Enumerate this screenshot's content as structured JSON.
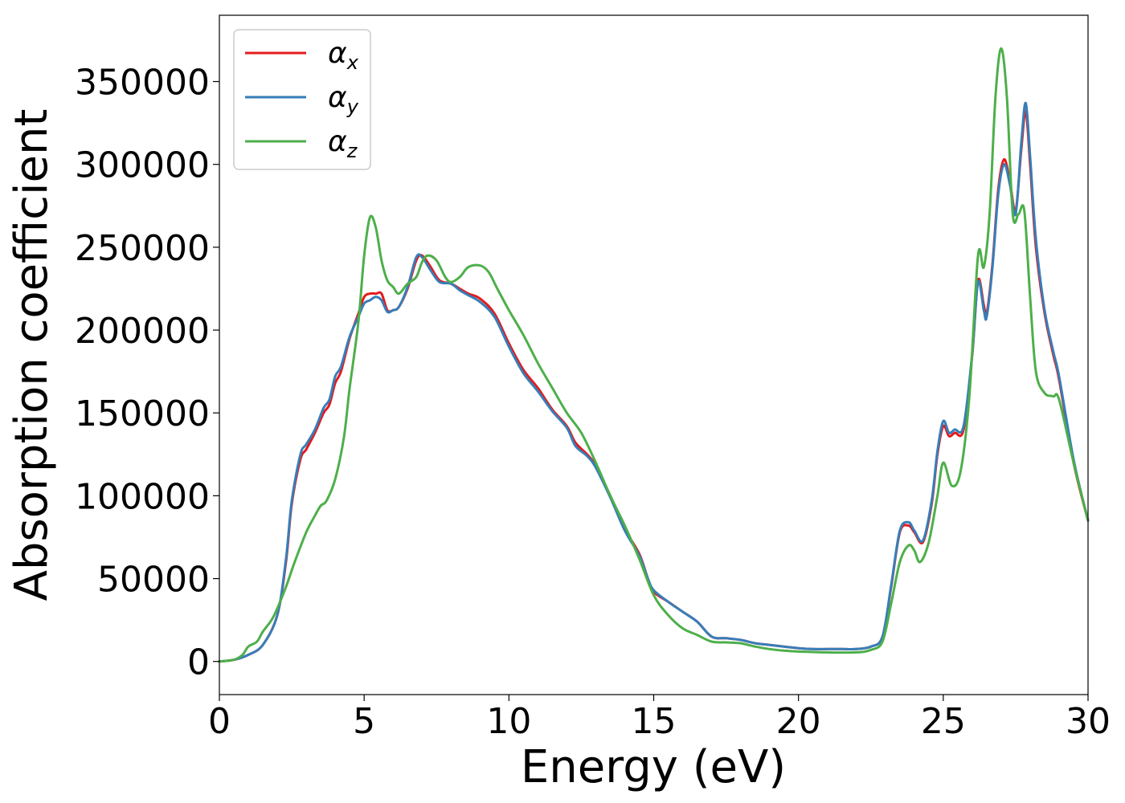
{
  "chart_data": {
    "type": "line",
    "title": "",
    "xlabel": "Energy (eV)",
    "ylabel": "Absorption coefficient",
    "xlim": [
      0,
      30
    ],
    "ylim": [
      -20000,
      390000
    ],
    "xticks": [
      0,
      5,
      10,
      15,
      20,
      25,
      30
    ],
    "yticks": [
      0,
      50000,
      100000,
      150000,
      200000,
      250000,
      300000,
      350000
    ],
    "grid": false,
    "legend": {
      "placement": "top-left"
    },
    "series": [
      {
        "name": "α_x",
        "symbol": "α",
        "subscript": "x",
        "color": "#e41a1c",
        "points": [
          [
            0,
            0
          ],
          [
            0.5,
            1000
          ],
          [
            1,
            4000
          ],
          [
            1.5,
            10000
          ],
          [
            2,
            28000
          ],
          [
            2.3,
            60000
          ],
          [
            2.5,
            95000
          ],
          [
            2.8,
            122000
          ],
          [
            3,
            128000
          ],
          [
            3.3,
            138000
          ],
          [
            3.6,
            150000
          ],
          [
            3.8,
            155000
          ],
          [
            4,
            168000
          ],
          [
            4.2,
            175000
          ],
          [
            4.5,
            195000
          ],
          [
            4.8,
            210000
          ],
          [
            5,
            220000
          ],
          [
            5.2,
            222000
          ],
          [
            5.4,
            222000
          ],
          [
            5.6,
            222000
          ],
          [
            5.8,
            212000
          ],
          [
            6,
            212000
          ],
          [
            6.2,
            214000
          ],
          [
            6.5,
            225000
          ],
          [
            6.8,
            242000
          ],
          [
            7,
            245000
          ],
          [
            7.3,
            238000
          ],
          [
            7.6,
            230000
          ],
          [
            8,
            228000
          ],
          [
            8.3,
            225000
          ],
          [
            8.6,
            222000
          ],
          [
            9,
            219000
          ],
          [
            9.5,
            210000
          ],
          [
            10,
            192000
          ],
          [
            10.5,
            176000
          ],
          [
            11,
            165000
          ],
          [
            11.5,
            152000
          ],
          [
            12,
            142000
          ],
          [
            12.3,
            132000
          ],
          [
            12.7,
            125000
          ],
          [
            13,
            118000
          ],
          [
            13.5,
            100000
          ],
          [
            14,
            80000
          ],
          [
            14.5,
            65000
          ],
          [
            14.8,
            50000
          ],
          [
            15,
            42000
          ],
          [
            15.5,
            36000
          ],
          [
            16,
            30000
          ],
          [
            16.5,
            24000
          ],
          [
            17,
            15000
          ],
          [
            17.5,
            14000
          ],
          [
            18,
            13000
          ],
          [
            18.5,
            11000
          ],
          [
            19,
            10000
          ],
          [
            19.5,
            9000
          ],
          [
            20,
            8000
          ],
          [
            20.5,
            7500
          ],
          [
            21,
            7500
          ],
          [
            21.5,
            7500
          ],
          [
            22,
            7500
          ],
          [
            22.5,
            9000
          ],
          [
            22.9,
            15000
          ],
          [
            23.2,
            45000
          ],
          [
            23.5,
            78000
          ],
          [
            23.8,
            82000
          ],
          [
            24,
            78000
          ],
          [
            24.3,
            72000
          ],
          [
            24.6,
            95000
          ],
          [
            24.8,
            125000
          ],
          [
            25,
            142000
          ],
          [
            25.2,
            136000
          ],
          [
            25.4,
            138000
          ],
          [
            25.7,
            140000
          ],
          [
            26,
            185000
          ],
          [
            26.2,
            230000
          ],
          [
            26.4,
            215000
          ],
          [
            26.5,
            210000
          ],
          [
            26.7,
            240000
          ],
          [
            26.9,
            285000
          ],
          [
            27.1,
            303000
          ],
          [
            27.3,
            290000
          ],
          [
            27.5,
            272000
          ],
          [
            27.7,
            310000
          ],
          [
            27.85,
            332000
          ],
          [
            28,
            300000
          ],
          [
            28.2,
            250000
          ],
          [
            28.5,
            210000
          ],
          [
            28.8,
            185000
          ],
          [
            29,
            170000
          ],
          [
            29.5,
            120000
          ],
          [
            30,
            85000
          ]
        ]
      },
      {
        "name": "α_y",
        "symbol": "α",
        "subscript": "y",
        "color": "#377eb8",
        "points": [
          [
            0,
            0
          ],
          [
            0.5,
            1000
          ],
          [
            1,
            4000
          ],
          [
            1.5,
            10000
          ],
          [
            2,
            28000
          ],
          [
            2.3,
            62000
          ],
          [
            2.5,
            97000
          ],
          [
            2.8,
            125000
          ],
          [
            3,
            131000
          ],
          [
            3.3,
            140000
          ],
          [
            3.6,
            153000
          ],
          [
            3.8,
            158000
          ],
          [
            4,
            172000
          ],
          [
            4.2,
            178000
          ],
          [
            4.5,
            196000
          ],
          [
            4.8,
            208000
          ],
          [
            5,
            216000
          ],
          [
            5.2,
            218000
          ],
          [
            5.4,
            220000
          ],
          [
            5.6,
            218000
          ],
          [
            5.8,
            211000
          ],
          [
            6,
            212000
          ],
          [
            6.2,
            214000
          ],
          [
            6.5,
            226000
          ],
          [
            6.8,
            244000
          ],
          [
            7,
            244000
          ],
          [
            7.3,
            236000
          ],
          [
            7.6,
            229000
          ],
          [
            8,
            228000
          ],
          [
            8.3,
            224000
          ],
          [
            8.6,
            221000
          ],
          [
            9,
            217000
          ],
          [
            9.5,
            208000
          ],
          [
            10,
            190000
          ],
          [
            10.5,
            174000
          ],
          [
            11,
            163000
          ],
          [
            11.5,
            151000
          ],
          [
            12,
            141000
          ],
          [
            12.3,
            130000
          ],
          [
            12.7,
            124000
          ],
          [
            13,
            117000
          ],
          [
            13.5,
            99000
          ],
          [
            14,
            79000
          ],
          [
            14.5,
            64000
          ],
          [
            14.8,
            50000
          ],
          [
            15,
            43000
          ],
          [
            15.5,
            36000
          ],
          [
            16,
            30000
          ],
          [
            16.5,
            24000
          ],
          [
            17,
            15000
          ],
          [
            17.5,
            14000
          ],
          [
            18,
            13000
          ],
          [
            18.5,
            11000
          ],
          [
            19,
            10000
          ],
          [
            19.5,
            9000
          ],
          [
            20,
            8000
          ],
          [
            20.5,
            7500
          ],
          [
            21,
            7500
          ],
          [
            21.5,
            7500
          ],
          [
            22,
            7500
          ],
          [
            22.5,
            9000
          ],
          [
            22.9,
            15000
          ],
          [
            23.2,
            46000
          ],
          [
            23.5,
            79000
          ],
          [
            23.8,
            84000
          ],
          [
            24,
            79000
          ],
          [
            24.3,
            73000
          ],
          [
            24.6,
            97000
          ],
          [
            24.8,
            127000
          ],
          [
            25,
            145000
          ],
          [
            25.2,
            138000
          ],
          [
            25.4,
            140000
          ],
          [
            25.7,
            142000
          ],
          [
            26,
            186000
          ],
          [
            26.2,
            229000
          ],
          [
            26.4,
            212000
          ],
          [
            26.5,
            208000
          ],
          [
            26.7,
            238000
          ],
          [
            26.9,
            282000
          ],
          [
            27.1,
            300000
          ],
          [
            27.3,
            288000
          ],
          [
            27.5,
            270000
          ],
          [
            27.7,
            314000
          ],
          [
            27.85,
            337000
          ],
          [
            28,
            305000
          ],
          [
            28.2,
            255000
          ],
          [
            28.5,
            212000
          ],
          [
            28.8,
            187000
          ],
          [
            29,
            172000
          ],
          [
            29.5,
            122000
          ],
          [
            30,
            85000
          ]
        ]
      },
      {
        "name": "α_z",
        "symbol": "α",
        "subscript": "z",
        "color": "#4daf4a",
        "points": [
          [
            0,
            0
          ],
          [
            0.5,
            1000
          ],
          [
            0.8,
            4000
          ],
          [
            1,
            9000
          ],
          [
            1.3,
            12000
          ],
          [
            1.5,
            18000
          ],
          [
            1.8,
            25000
          ],
          [
            2,
            32000
          ],
          [
            2.3,
            45000
          ],
          [
            2.6,
            60000
          ],
          [
            3,
            78000
          ],
          [
            3.3,
            88000
          ],
          [
            3.5,
            94000
          ],
          [
            3.7,
            97000
          ],
          [
            4,
            110000
          ],
          [
            4.3,
            135000
          ],
          [
            4.5,
            165000
          ],
          [
            4.8,
            205000
          ],
          [
            5,
            245000
          ],
          [
            5.2,
            268000
          ],
          [
            5.4,
            262000
          ],
          [
            5.6,
            242000
          ],
          [
            5.8,
            230000
          ],
          [
            6,
            226000
          ],
          [
            6.2,
            222000
          ],
          [
            6.5,
            228000
          ],
          [
            6.8,
            232000
          ],
          [
            7,
            241000
          ],
          [
            7.2,
            245000
          ],
          [
            7.5,
            242000
          ],
          [
            7.8,
            232000
          ],
          [
            8,
            229000
          ],
          [
            8.3,
            232000
          ],
          [
            8.6,
            238000
          ],
          [
            9,
            239000
          ],
          [
            9.3,
            235000
          ],
          [
            9.6,
            225000
          ],
          [
            10,
            212000
          ],
          [
            10.5,
            197000
          ],
          [
            11,
            180000
          ],
          [
            11.5,
            165000
          ],
          [
            12,
            150000
          ],
          [
            12.5,
            138000
          ],
          [
            13,
            120000
          ],
          [
            13.5,
            100000
          ],
          [
            14,
            82000
          ],
          [
            14.5,
            62000
          ],
          [
            15,
            40000
          ],
          [
            15.5,
            28000
          ],
          [
            16,
            20000
          ],
          [
            16.5,
            16000
          ],
          [
            17,
            12000
          ],
          [
            17.5,
            11500
          ],
          [
            18,
            11000
          ],
          [
            18.5,
            9000
          ],
          [
            19,
            7500
          ],
          [
            19.5,
            6500
          ],
          [
            20,
            6000
          ],
          [
            21,
            5500
          ],
          [
            22,
            5500
          ],
          [
            22.5,
            7000
          ],
          [
            22.9,
            12000
          ],
          [
            23.2,
            35000
          ],
          [
            23.5,
            60000
          ],
          [
            23.8,
            70000
          ],
          [
            24,
            67000
          ],
          [
            24.2,
            60000
          ],
          [
            24.5,
            72000
          ],
          [
            24.8,
            100000
          ],
          [
            25,
            120000
          ],
          [
            25.3,
            106000
          ],
          [
            25.6,
            115000
          ],
          [
            25.9,
            160000
          ],
          [
            26.2,
            245000
          ],
          [
            26.4,
            238000
          ],
          [
            26.6,
            270000
          ],
          [
            26.8,
            340000
          ],
          [
            27,
            370000
          ],
          [
            27.2,
            340000
          ],
          [
            27.4,
            270000
          ],
          [
            27.6,
            270000
          ],
          [
            27.8,
            272000
          ],
          [
            28,
            220000
          ],
          [
            28.2,
            175000
          ],
          [
            28.5,
            162000
          ],
          [
            28.8,
            160000
          ],
          [
            29,
            158000
          ],
          [
            29.5,
            120000
          ],
          [
            30,
            85000
          ]
        ]
      }
    ]
  }
}
